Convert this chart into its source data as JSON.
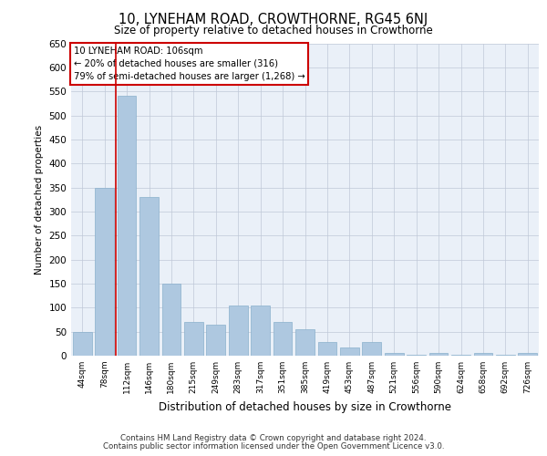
{
  "title": "10, LYNEHAM ROAD, CROWTHORNE, RG45 6NJ",
  "subtitle": "Size of property relative to detached houses in Crowthorne",
  "xlabel": "Distribution of detached houses by size in Crowthorne",
  "ylabel": "Number of detached properties",
  "categories": [
    "44sqm",
    "78sqm",
    "112sqm",
    "146sqm",
    "180sqm",
    "215sqm",
    "249sqm",
    "283sqm",
    "317sqm",
    "351sqm",
    "385sqm",
    "419sqm",
    "453sqm",
    "487sqm",
    "521sqm",
    "556sqm",
    "590sqm",
    "624sqm",
    "658sqm",
    "692sqm",
    "726sqm"
  ],
  "values": [
    50,
    350,
    540,
    330,
    150,
    70,
    65,
    105,
    105,
    70,
    55,
    28,
    18,
    28,
    5,
    2,
    5,
    2,
    5,
    1,
    5
  ],
  "bar_color": "#aec8e0",
  "bar_edge_color": "#8ab0cc",
  "highlight_index": 2,
  "highlight_line_color": "#cc0000",
  "ylim": [
    0,
    650
  ],
  "yticks": [
    0,
    50,
    100,
    150,
    200,
    250,
    300,
    350,
    400,
    450,
    500,
    550,
    600,
    650
  ],
  "annotation_text": "10 LYNEHAM ROAD: 106sqm\n← 20% of detached houses are smaller (316)\n79% of semi-detached houses are larger (1,268) →",
  "annotation_box_color": "#ffffff",
  "annotation_box_edge": "#cc0000",
  "footer_line1": "Contains HM Land Registry data © Crown copyright and database right 2024.",
  "footer_line2": "Contains public sector information licensed under the Open Government Licence v3.0.",
  "bg_color": "#eaf0f8",
  "fig_bg_color": "#ffffff"
}
